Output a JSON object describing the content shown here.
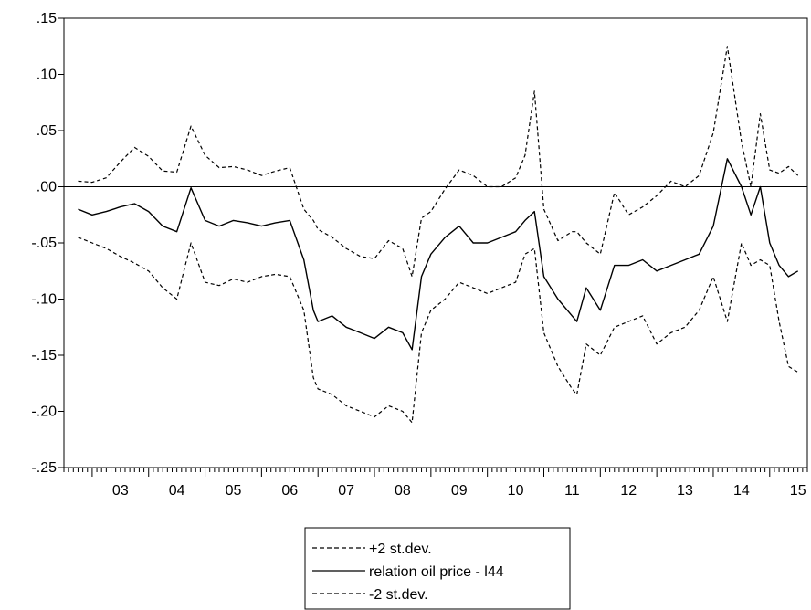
{
  "chart_data": {
    "type": "line",
    "title": "",
    "xlabel": "",
    "ylabel": "",
    "x": [
      "2002-10",
      "2003-01",
      "2003-04",
      "2003-07",
      "2003-10",
      "2004-01",
      "2004-04",
      "2004-07",
      "2004-10",
      "2005-01",
      "2005-04",
      "2005-07",
      "2005-10",
      "2006-01",
      "2006-04",
      "2006-07",
      "2006-10",
      "2006-12",
      "2007-01",
      "2007-04",
      "2007-07",
      "2007-10",
      "2008-01",
      "2008-04",
      "2008-07",
      "2008-09",
      "2008-11",
      "2009-01",
      "2009-04",
      "2009-07",
      "2009-10",
      "2010-01",
      "2010-04",
      "2010-07",
      "2010-09",
      "2010-11",
      "2011-01",
      "2011-04",
      "2011-07",
      "2011-08",
      "2011-10",
      "2012-01",
      "2012-04",
      "2012-07",
      "2012-10",
      "2013-01",
      "2013-04",
      "2013-07",
      "2013-10",
      "2014-01",
      "2014-04",
      "2014-07",
      "2014-09",
      "2014-11",
      "2015-01",
      "2015-03",
      "2015-05",
      "2015-07"
    ],
    "xlim": [
      "2002-07",
      "2015-09"
    ],
    "ylim": [
      -0.25,
      0.15
    ],
    "yticks": [
      ".15",
      ".10",
      ".05",
      ".00",
      "-.05",
      "-.10",
      "-.15",
      "-.20",
      "-.25"
    ],
    "xticks": [
      "03",
      "04",
      "05",
      "06",
      "07",
      "08",
      "09",
      "10",
      "11",
      "12",
      "13",
      "14",
      "15"
    ],
    "zero_line": true,
    "grid": false,
    "legend_position": "bottom-center",
    "series": [
      {
        "name": "+2 st.dev.",
        "style": "dashed",
        "color": "#000000",
        "values": [
          0.005,
          0.004,
          0.008,
          0.022,
          0.035,
          0.027,
          0.014,
          0.013,
          0.054,
          0.028,
          0.017,
          0.018,
          0.015,
          0.01,
          0.014,
          0.017,
          -0.02,
          -0.03,
          -0.038,
          -0.045,
          -0.055,
          -0.062,
          -0.064,
          -0.048,
          -0.055,
          -0.08,
          -0.028,
          -0.022,
          -0.002,
          0.015,
          0.01,
          0.0,
          0.0,
          0.008,
          0.028,
          0.085,
          -0.02,
          -0.048,
          -0.04,
          -0.04,
          -0.05,
          -0.06,
          -0.005,
          -0.025,
          -0.018,
          -0.008,
          0.005,
          0.0,
          0.01,
          0.048,
          0.125,
          0.04,
          0.0,
          0.065,
          0.015,
          0.012,
          0.018,
          0.01
        ]
      },
      {
        "name": "relation oil price - l44",
        "style": "solid",
        "color": "#000000",
        "values": [
          -0.02,
          -0.025,
          -0.022,
          -0.018,
          -0.015,
          -0.022,
          -0.035,
          -0.04,
          -0.001,
          -0.03,
          -0.035,
          -0.03,
          -0.032,
          -0.035,
          -0.032,
          -0.03,
          -0.065,
          -0.11,
          -0.12,
          -0.115,
          -0.125,
          -0.13,
          -0.135,
          -0.125,
          -0.13,
          -0.145,
          -0.08,
          -0.06,
          -0.045,
          -0.035,
          -0.05,
          -0.05,
          -0.045,
          -0.04,
          -0.03,
          -0.022,
          -0.08,
          -0.1,
          -0.115,
          -0.12,
          -0.09,
          -0.11,
          -0.07,
          -0.07,
          -0.065,
          -0.075,
          -0.07,
          -0.065,
          -0.06,
          -0.035,
          0.025,
          0.0,
          -0.025,
          0.0,
          -0.05,
          -0.07,
          -0.08,
          -0.075
        ]
      },
      {
        "name": "-2 st.dev.",
        "style": "dashed",
        "color": "#000000",
        "values": [
          -0.045,
          -0.05,
          -0.055,
          -0.062,
          -0.068,
          -0.075,
          -0.09,
          -0.1,
          -0.05,
          -0.085,
          -0.088,
          -0.082,
          -0.085,
          -0.08,
          -0.078,
          -0.08,
          -0.11,
          -0.17,
          -0.18,
          -0.185,
          -0.195,
          -0.2,
          -0.205,
          -0.195,
          -0.2,
          -0.21,
          -0.13,
          -0.11,
          -0.1,
          -0.085,
          -0.09,
          -0.095,
          -0.09,
          -0.085,
          -0.06,
          -0.055,
          -0.13,
          -0.16,
          -0.18,
          -0.185,
          -0.14,
          -0.15,
          -0.125,
          -0.12,
          -0.115,
          -0.14,
          -0.13,
          -0.125,
          -0.11,
          -0.08,
          -0.12,
          -0.05,
          -0.07,
          -0.065,
          -0.07,
          -0.12,
          -0.16,
          -0.165
        ]
      }
    ]
  }
}
